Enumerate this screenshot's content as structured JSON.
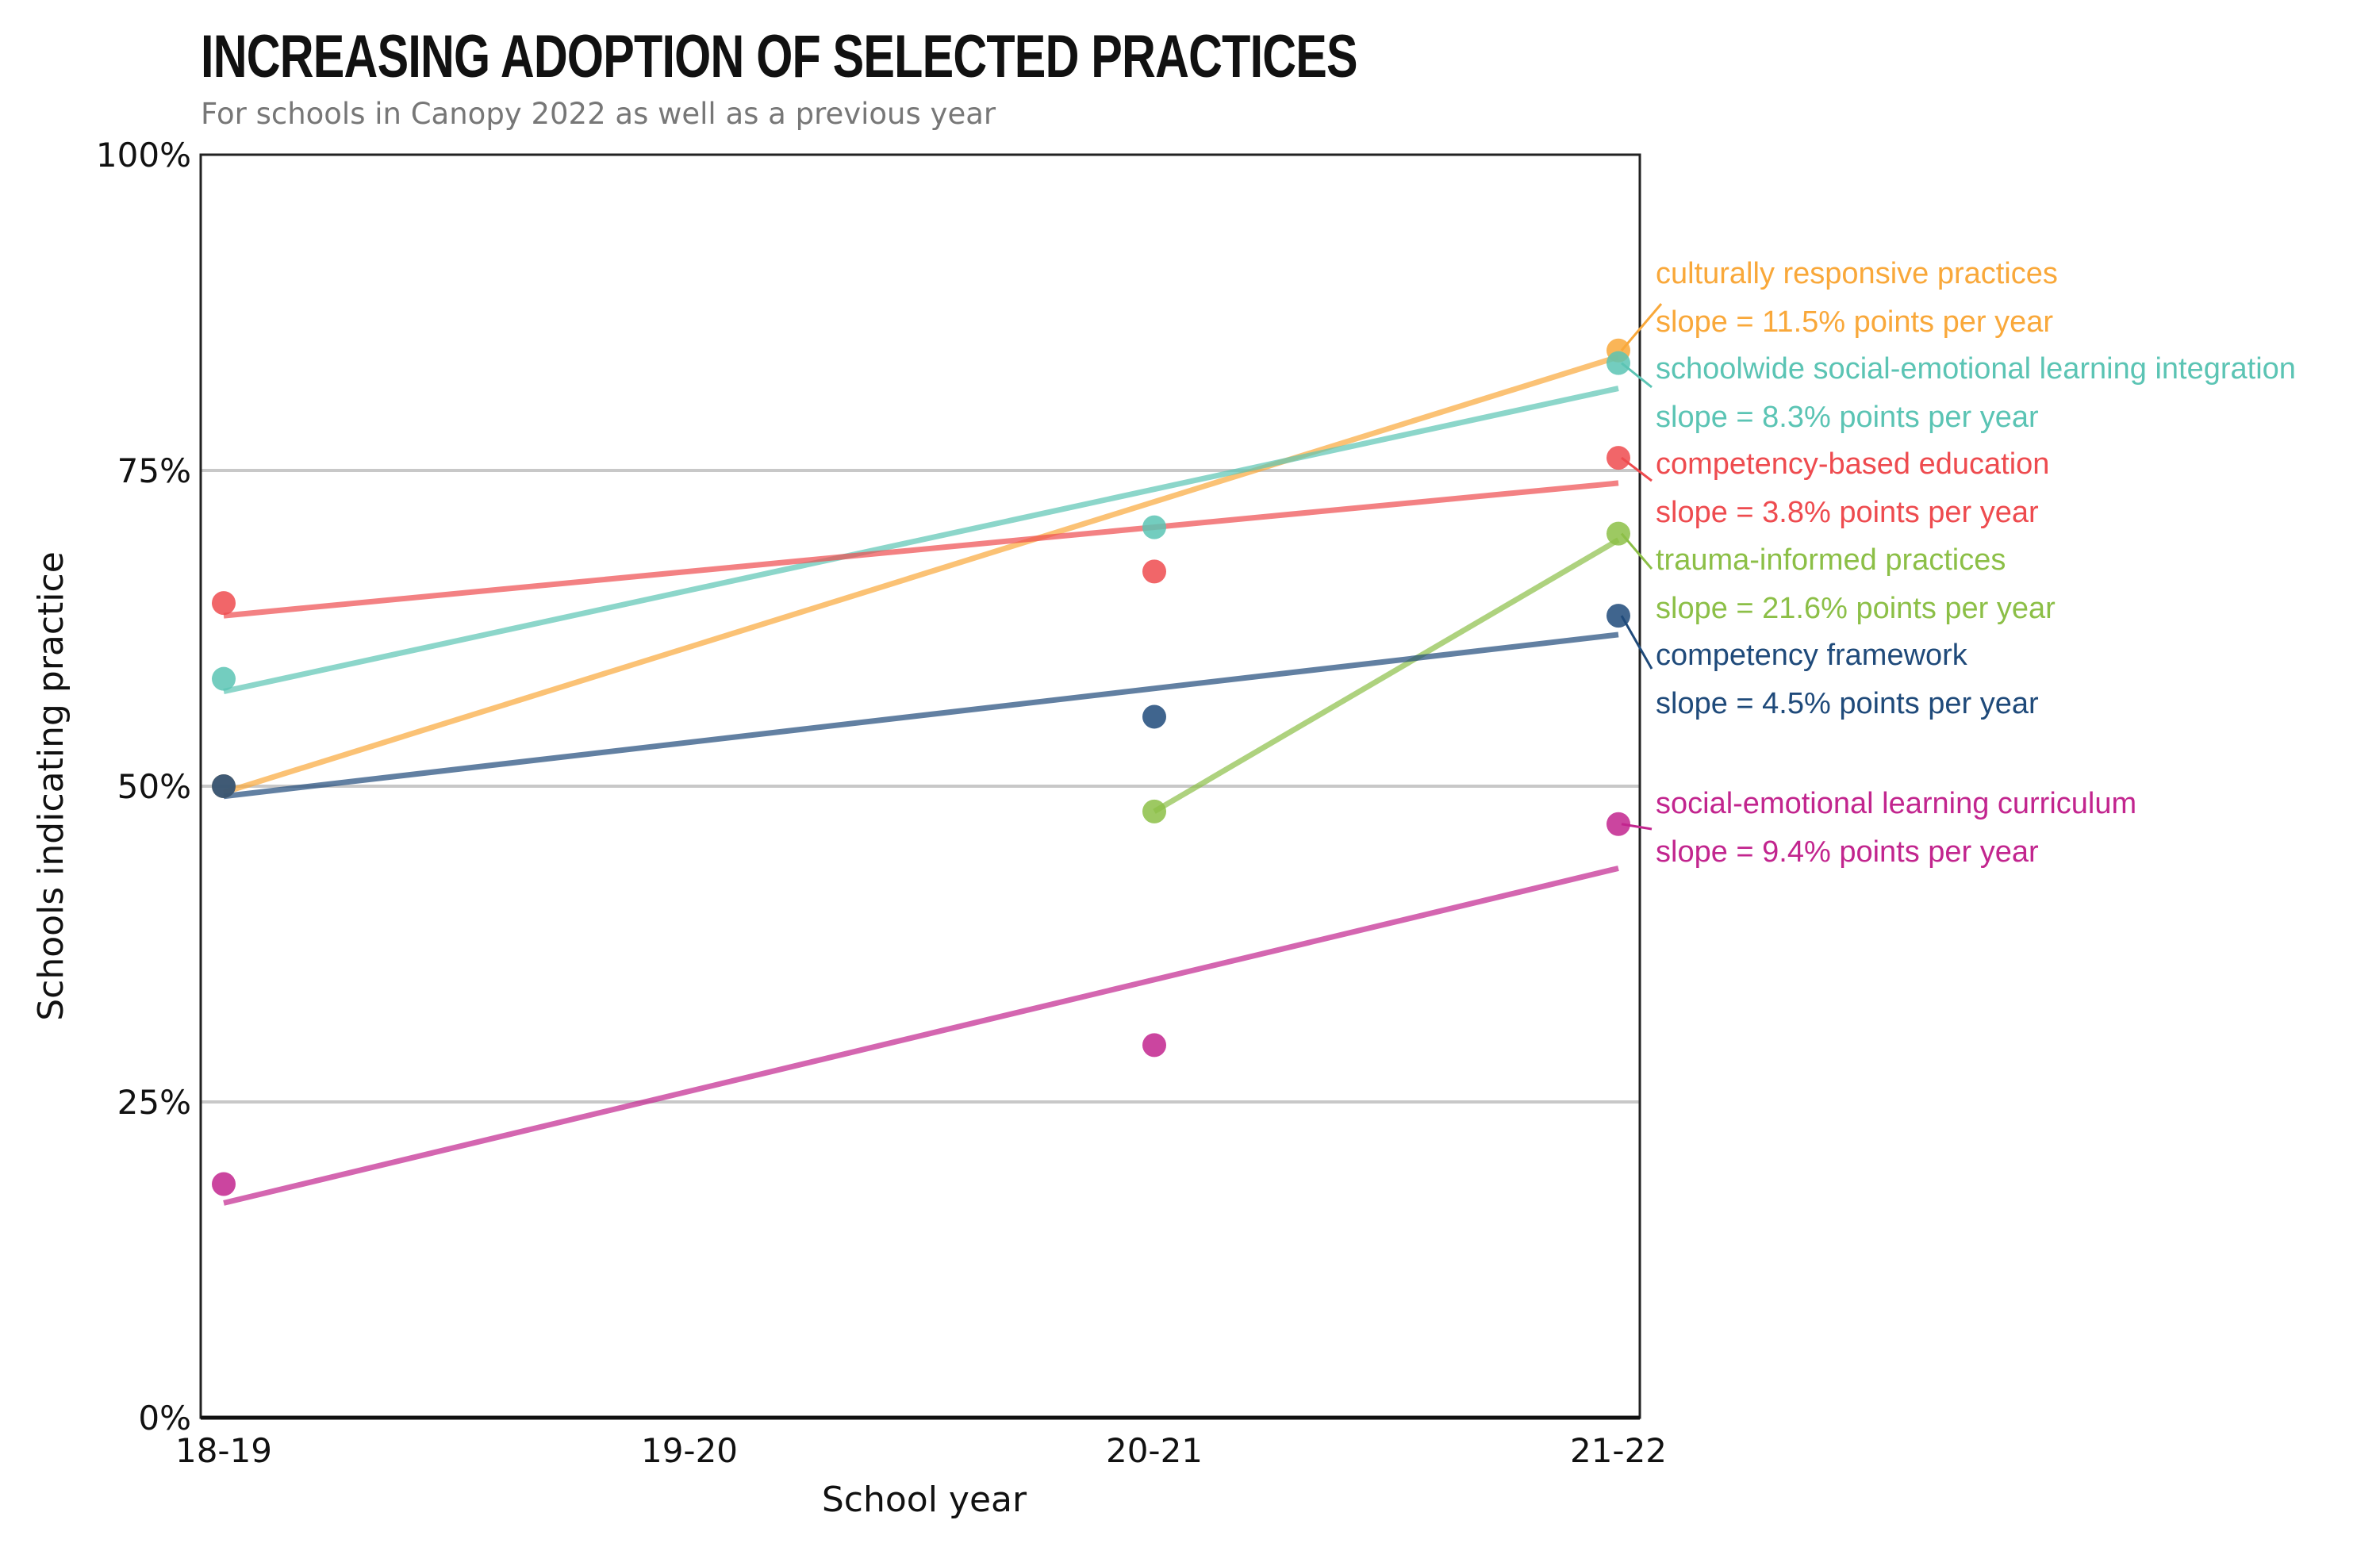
{
  "title": "INCREASING ADOPTION OF SELECTED PRACTICES",
  "subtitle": "For schools in Canopy 2022 as well as a previous year",
  "chart_data": {
    "type": "scatter",
    "title": "INCREASING ADOPTION OF SELECTED PRACTICES",
    "subtitle": "For schools in Canopy 2022 as well as a previous year",
    "xlabel": "School year",
    "ylabel": "Schools indicating practice",
    "categories": [
      "18-19",
      "19-20",
      "20-21",
      "21-22"
    ],
    "ylim": [
      0,
      100
    ],
    "yticks": [
      0,
      25,
      50,
      75,
      100
    ],
    "ytick_labels": [
      "0%",
      "25%",
      "50%",
      "75%",
      "100%"
    ],
    "grid": "horizontal",
    "series": [
      {
        "name": "culturally responsive practices",
        "slope_label": "slope = 11.5% points per year",
        "color": "#F9A83A",
        "points": [
          {
            "x": "18-19",
            "y": 50
          },
          {
            "x": "21-22",
            "y": 84.5
          }
        ],
        "trend": {
          "start": {
            "x": "18-19",
            "y": 49.5
          },
          "end": {
            "x": "21-22",
            "y": 84
          }
        }
      },
      {
        "name": "schoolwide social-emotional learning integration",
        "slope_label": "slope = 8.3% points per year",
        "color": "#5BC4B4",
        "points": [
          {
            "x": "18-19",
            "y": 58.5
          },
          {
            "x": "20-21",
            "y": 70.5
          },
          {
            "x": "21-22",
            "y": 83.5
          }
        ],
        "trend": {
          "start": {
            "x": "18-19",
            "y": 57.5
          },
          "end": {
            "x": "21-22",
            "y": 81.5
          }
        }
      },
      {
        "name": "competency-based education",
        "slope_label": "slope = 3.8% points per year",
        "color": "#EE4B4F",
        "points": [
          {
            "x": "18-19",
            "y": 64.5
          },
          {
            "x": "20-21",
            "y": 67
          },
          {
            "x": "21-22",
            "y": 76
          }
        ],
        "trend": {
          "start": {
            "x": "18-19",
            "y": 63.5
          },
          "end": {
            "x": "21-22",
            "y": 74
          }
        }
      },
      {
        "name": "trauma-informed practices",
        "slope_label": "slope = 21.6% points per year",
        "color": "#8CBF47",
        "points": [
          {
            "x": "20-21",
            "y": 48
          },
          {
            "x": "21-22",
            "y": 70
          }
        ],
        "trend": {
          "start": {
            "x": "20-21",
            "y": 48
          },
          "end": {
            "x": "21-22",
            "y": 69.5
          }
        }
      },
      {
        "name": "competency framework",
        "slope_label": "slope = 4.5% points per year",
        "color": "#1F4A7A",
        "points": [
          {
            "x": "18-19",
            "y": 50
          },
          {
            "x": "20-21",
            "y": 55.5
          },
          {
            "x": "21-22",
            "y": 63.5
          }
        ],
        "trend": {
          "start": {
            "x": "18-19",
            "y": 49.2
          },
          "end": {
            "x": "21-22",
            "y": 62
          }
        }
      },
      {
        "name": "social-emotional learning curriculum",
        "slope_label": "slope = 9.4% points per year",
        "color": "#C2258E",
        "points": [
          {
            "x": "18-19",
            "y": 18.5
          },
          {
            "x": "20-21",
            "y": 29.5
          },
          {
            "x": "21-22",
            "y": 47
          }
        ],
        "trend": {
          "start": {
            "x": "18-19",
            "y": 17
          },
          "end": {
            "x": "21-22",
            "y": 43.5
          }
        }
      }
    ]
  }
}
